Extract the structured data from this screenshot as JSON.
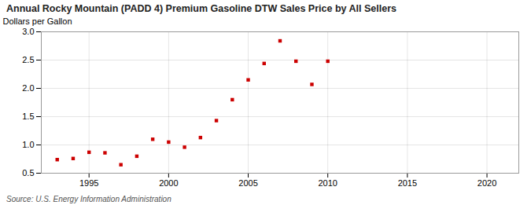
{
  "chart_data": {
    "type": "scatter",
    "title": "Annual Rocky Mountain (PADD 4) Premium Gasoline DTW Sales Price by All Sellers",
    "ylabel": "Dollars per Gallon",
    "source": "Source: U.S. Energy Information Administration",
    "x": [
      1993,
      1994,
      1995,
      1996,
      1997,
      1998,
      1999,
      2000,
      2001,
      2002,
      2003,
      2004,
      2005,
      2006,
      2007,
      2008,
      2009,
      2010
    ],
    "values": [
      0.74,
      0.76,
      0.87,
      0.86,
      0.65,
      0.8,
      1.1,
      1.05,
      0.96,
      1.13,
      1.43,
      1.8,
      2.15,
      2.44,
      2.84,
      2.48,
      2.07,
      2.48
    ],
    "color": "#cc0000",
    "marker": "square",
    "xlim": [
      1992,
      2022
    ],
    "xticks": [
      1995,
      2000,
      2005,
      2010,
      2015,
      2020
    ],
    "ylim": [
      0.5,
      3.0
    ],
    "yticks": [
      0.5,
      {
        "value": 1.0,
        "label": "1.0"
      },
      1.5,
      {
        "value": 2.0,
        "label": "2.0"
      },
      2.5,
      {
        "value": 3.0,
        "label": "3.0"
      }
    ],
    "grid": true
  }
}
